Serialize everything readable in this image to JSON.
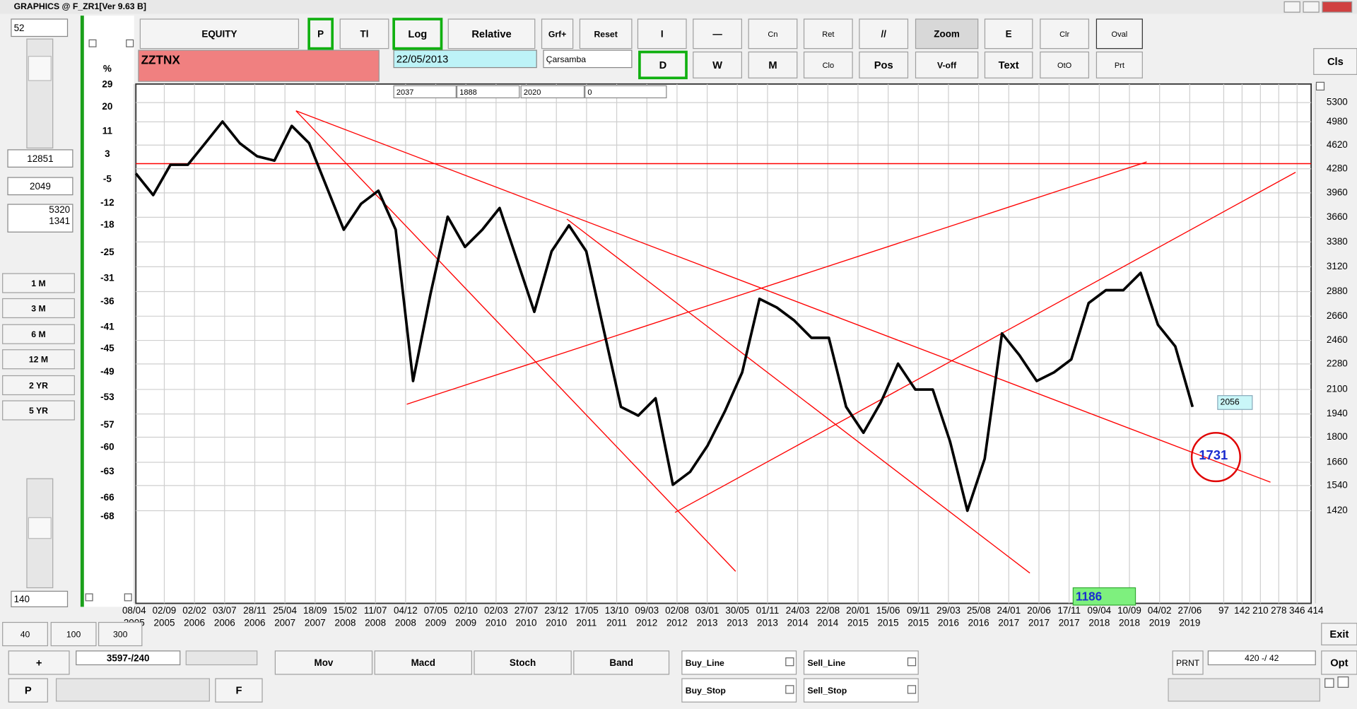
{
  "window": {
    "title": "GRAPHICS  @ F_ZR1[Ver 9.63 B]"
  },
  "left_panel": {
    "top_input": "52",
    "fields": [
      "12851",
      "2049"
    ],
    "info": [
      "5320",
      "1341"
    ],
    "periods": [
      "1 M",
      "3 M",
      "6 M",
      "12 M",
      "2 YR",
      "5 YR"
    ],
    "bottom_input": "140"
  },
  "toolbar": {
    "row1": [
      "EQUITY",
      "P",
      "Tl",
      "Log",
      "Relative",
      "Grf+",
      "Reset",
      "I",
      "—",
      "Cn",
      "Ret",
      "//",
      "Zoom",
      "E",
      "Clr",
      "Oval"
    ],
    "row2": [
      "D",
      "W",
      "M",
      "Clo",
      "Pos",
      "V-off",
      "Text",
      "OtO",
      "Prt"
    ],
    "symbol": "ZZTNX",
    "date": "22/05/2013",
    "day": "Çarsamba",
    "fields": [
      "2037",
      "1888",
      "2020",
      "0"
    ],
    "close": "Cls"
  },
  "chart_data": {
    "type": "line",
    "log_scale": true,
    "grid": true,
    "ylim": [
      1053,
      5627
    ],
    "yticks": [
      5300,
      4980,
      4620,
      4280,
      3960,
      3660,
      3380,
      3120,
      2880,
      2660,
      2460,
      2280,
      2100,
      1940,
      1800,
      1660,
      1540,
      1420
    ],
    "pct_label": "%",
    "pct_ticks": [
      29,
      20,
      11,
      3,
      -5,
      -12,
      -18,
      -25,
      -31,
      -36,
      -41,
      -45,
      -49,
      -53,
      -57,
      -60,
      -63,
      -66,
      -68
    ],
    "reference_level": 4352,
    "trendline_color": "#ff0000",
    "x_labels": [
      {
        "day": "08/04",
        "year": "2005"
      },
      {
        "day": "02/09",
        "year": "2005"
      },
      {
        "day": "02/02",
        "year": "2006"
      },
      {
        "day": "03/07",
        "year": "2006"
      },
      {
        "day": "28/11",
        "year": "2006"
      },
      {
        "day": "25/04",
        "year": "2007"
      },
      {
        "day": "18/09",
        "year": "2007"
      },
      {
        "day": "15/02",
        "year": "2008"
      },
      {
        "day": "11/07",
        "year": "2008"
      },
      {
        "day": "04/12",
        "year": "2008"
      },
      {
        "day": "07/05",
        "year": "2009"
      },
      {
        "day": "02/10",
        "year": "2009"
      },
      {
        "day": "02/03",
        "year": "2010"
      },
      {
        "day": "27/07",
        "year": "2010"
      },
      {
        "day": "23/12",
        "year": "2010"
      },
      {
        "day": "17/05",
        "year": "2011"
      },
      {
        "day": "13/10",
        "year": "2011"
      },
      {
        "day": "09/03",
        "year": "2012"
      },
      {
        "day": "02/08",
        "year": "2012"
      },
      {
        "day": "03/01",
        "year": "2013"
      },
      {
        "day": "30/05",
        "year": "2013"
      },
      {
        "day": "01/11",
        "year": "2013"
      },
      {
        "day": "24/03",
        "year": "2014"
      },
      {
        "day": "22/08",
        "year": "2014"
      },
      {
        "day": "20/01",
        "year": "2015"
      },
      {
        "day": "15/06",
        "year": "2015"
      },
      {
        "day": "09/11",
        "year": "2015"
      },
      {
        "day": "29/03",
        "year": "2016"
      },
      {
        "day": "25/08",
        "year": "2016"
      },
      {
        "day": "24/01",
        "year": "2017"
      },
      {
        "day": "20/06",
        "year": "2017"
      },
      {
        "day": "17/11",
        "year": "2017"
      },
      {
        "day": "09/04",
        "year": "2018"
      },
      {
        "day": "10/09",
        "year": "2018"
      },
      {
        "day": "04/02",
        "year": "2019"
      },
      {
        "day": "27/06",
        "year": "2019"
      }
    ],
    "x_extra_labels": [
      97,
      142,
      210,
      278,
      346,
      414
    ],
    "series": [
      {
        "color": "#000000",
        "values": [
          4216,
          3932,
          4336,
          4336,
          4648,
          4984,
          4648,
          4457,
          4395,
          4915,
          4648,
          4044,
          3517,
          3823,
          3987,
          3517,
          2158,
          2853,
          3667,
          3326,
          3517,
          3771,
          3189,
          2698,
          3280,
          3566,
          3280,
          2551,
          1985,
          1930,
          2041,
          1544,
          1610,
          1751,
          1957,
          2219,
          2813,
          2736,
          2624,
          2481,
          2481,
          1985,
          1826,
          2013,
          2282,
          2099,
          2099,
          1775,
          1420,
          1679,
          2516,
          2347,
          2158,
          2219,
          2314,
          2775,
          2893,
          2893,
          3059,
          2587,
          2413,
          1985
        ]
      }
    ],
    "annotations": [
      "1731",
      "2056",
      "1186"
    ]
  },
  "bottom": {
    "zoom": [
      "40",
      "100",
      "300"
    ],
    "plus": "+",
    "counter": "3597-/240",
    "indicators": [
      "Mov",
      "Macd",
      "Stoch",
      "Band"
    ],
    "orders": [
      "Buy_Line",
      "Sell_Line",
      "Buy_Stop",
      "Sell_Stop"
    ],
    "p": "P",
    "f": "F",
    "prnt": "PRNT",
    "status": "420 -/ 42",
    "exit": "Exit",
    "opt": "Opt"
  }
}
